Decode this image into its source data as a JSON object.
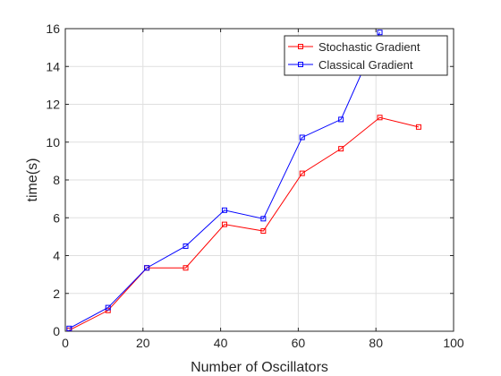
{
  "chart_data": {
    "type": "line",
    "xlabel": "Number of Oscillators",
    "ylabel": "time(s)",
    "xlim": [
      0,
      100
    ],
    "ylim": [
      0,
      16
    ],
    "xticks": [
      0,
      20,
      40,
      60,
      80,
      100
    ],
    "yticks": [
      0,
      2,
      4,
      6,
      8,
      10,
      12,
      14,
      16
    ],
    "grid": true,
    "legend_position": "top-right",
    "series": [
      {
        "name": "Stochastic Gradient",
        "color": "#ff0000",
        "marker": "square",
        "x": [
          1,
          11,
          21,
          31,
          41,
          51,
          61,
          71,
          81,
          91
        ],
        "y": [
          0.05,
          1.1,
          3.35,
          3.35,
          5.65,
          5.3,
          8.35,
          9.65,
          11.3,
          10.8
        ]
      },
      {
        "name": "Classical Gradient",
        "color": "#0000ff",
        "marker": "square",
        "x": [
          1,
          11,
          21,
          31,
          41,
          51,
          61,
          71,
          81
        ],
        "y": [
          0.15,
          1.25,
          3.35,
          4.5,
          6.4,
          5.95,
          10.25,
          11.2,
          15.8
        ]
      }
    ]
  }
}
